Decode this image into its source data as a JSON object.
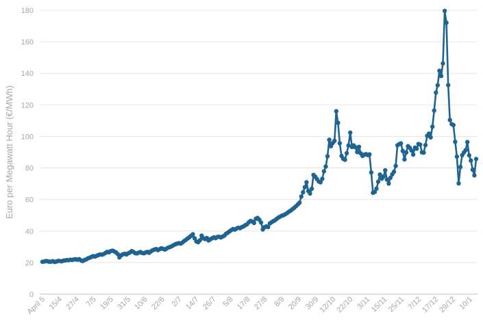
{
  "chart_data": {
    "type": "line",
    "title": "",
    "xlabel": "",
    "ylabel": "Euro per Megawatt Hour (€/MWh)",
    "ylim": [
      0,
      180
    ],
    "yticks": [
      0,
      20,
      40,
      60,
      80,
      100,
      120,
      140,
      160,
      180
    ],
    "xticks": [
      "April 5",
      "15/4",
      "27/4",
      "7/5",
      "19/5",
      "31/5",
      "10/6",
      "22/6",
      "2/7",
      "14/7",
      "26/7",
      "5/8",
      "17/8",
      "27/8",
      "8/9",
      "20/9",
      "30/9",
      "12/10",
      "22/10",
      "3/11",
      "15/11",
      "25/11",
      "7/12",
      "17/12",
      "29/12",
      "10/1"
    ],
    "grid": true,
    "legend": "none",
    "series_color": "#1f6391",
    "series": [
      {
        "values": [
          20.5,
          20.7,
          21.0,
          20.8,
          20.5,
          20.6,
          20.9,
          20.4,
          20.7,
          21.1,
          21.0,
          20.8,
          21.2,
          21.4,
          21.6,
          21.5,
          21.8,
          21.7,
          22.0,
          22.1,
          21.8,
          22.2,
          21.4,
          21.0,
          21.6,
          22.0,
          22.7,
          23.1,
          23.6,
          24.1,
          23.8,
          24.3,
          24.8,
          25.2,
          25.0,
          25.4,
          26.1,
          26.8,
          26.5,
          27.3,
          27.6,
          27.1,
          26.5,
          25.4,
          23.3,
          24.6,
          25.3,
          25.6,
          25.1,
          25.9,
          26.4,
          27.3,
          26.8,
          26.0,
          25.8,
          26.3,
          26.7,
          26.1,
          25.9,
          26.4,
          26.8,
          26.2,
          27.1,
          27.8,
          28.3,
          28.6,
          27.9,
          28.5,
          29.1,
          28.7,
          28.3,
          28.9,
          29.6,
          29.9,
          30.4,
          31.1,
          31.6,
          32.0,
          32.3,
          32.0,
          32.7,
          33.6,
          34.4,
          35.3,
          36.1,
          37.0,
          38.0,
          35.4,
          33.4,
          32.9,
          34.1,
          37.1,
          35.4,
          34.9,
          35.6,
          34.0,
          34.8,
          35.4,
          36.0,
          35.5,
          36.2,
          36.4,
          35.9,
          36.5,
          37.1,
          38.3,
          39.0,
          39.8,
          40.6,
          41.3,
          40.9,
          41.6,
          42.1,
          41.8,
          42.5,
          43.0,
          43.7,
          44.3,
          45.6,
          46.4,
          46.0,
          45.1,
          47.8,
          48.3,
          47.2,
          45.4,
          41.0,
          42.4,
          43.0,
          42.5,
          44.8,
          45.6,
          46.3,
          46.9,
          47.8,
          48.6,
          49.2,
          49.8,
          50.1,
          50.8,
          51.5,
          52.3,
          53.0,
          53.9,
          54.8,
          55.8,
          56.9,
          58.0,
          61.9,
          64.6,
          67.8,
          70.9,
          65.4,
          63.8,
          66.8,
          75.6,
          74.4,
          72.9,
          71.4,
          70.9,
          73.1,
          77.9,
          80.9,
          87.4,
          97.9,
          93.8,
          95.8,
          97.2,
          116.0,
          108.6,
          95.7,
          87.6,
          85.8,
          85.2,
          89.4,
          94.3,
          102.4,
          93.3,
          94.3,
          93.1,
          90.1,
          93.4,
          89.3,
          87.6,
          88.4,
          88.8,
          88.2,
          88.6,
          77.1,
          64.3,
          64.8,
          66.9,
          71.3,
          75.8,
          73.2,
          74.5,
          78.5,
          72.6,
          70.1,
          73.8,
          75.9,
          77.6,
          81.3,
          94.4,
          95.1,
          95.6,
          90.8,
          85.4,
          89.8,
          93.8,
          92.9,
          91.1,
          88.5,
          92.9,
          92.2,
          95.2,
          94.8,
          89.9,
          89.7,
          94.5,
          100.4,
          101.8,
          99.4,
          106.2,
          116.4,
          127.8,
          132.4,
          141.6,
          138.3,
          146.3,
          179.6,
          172.1,
          132.5,
          110.4,
          107.8,
          107.2,
          96.6,
          87.2,
          70.2,
          80.6,
          88.1,
          89.8,
          91.3,
          96.4,
          88.0,
          84.7,
          78.9,
          75.3,
          85.7
        ]
      }
    ]
  }
}
